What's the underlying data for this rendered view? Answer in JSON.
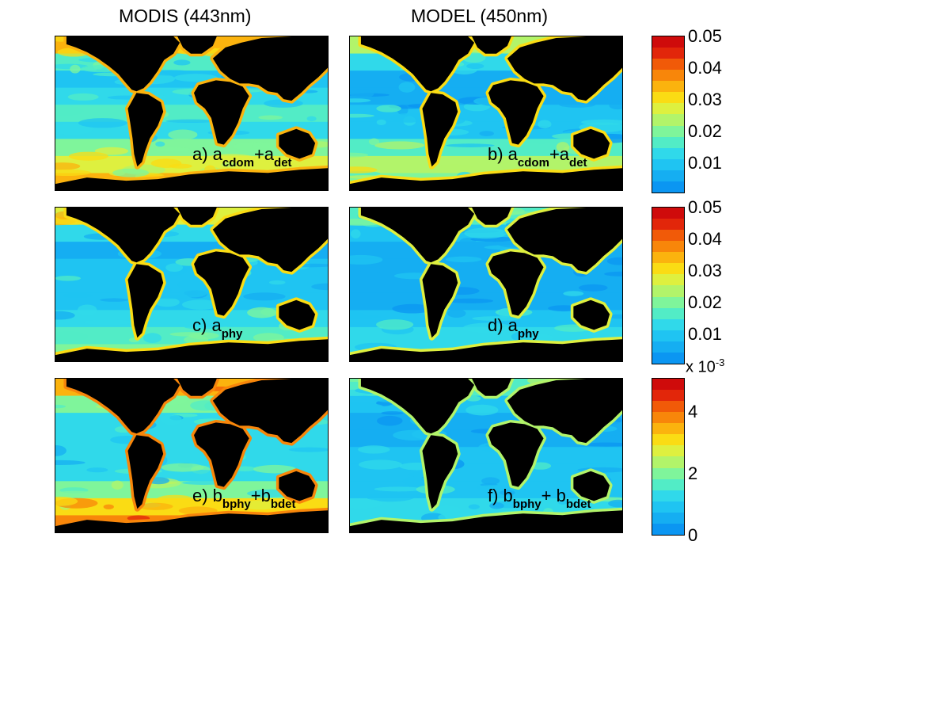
{
  "columns": {
    "left_title": "MODIS (443nm)",
    "right_title": "MODEL (450nm)"
  },
  "panels": [
    {
      "id": "a",
      "prefix": "a) a",
      "sub1": "cdom",
      "mid": "+a",
      "sub2": "det"
    },
    {
      "id": "b",
      "prefix": "b) a",
      "sub1": "cdom",
      "mid": "+a",
      "sub2": "det"
    },
    {
      "id": "c",
      "prefix": "c) a",
      "sub1": "phy",
      "mid": "",
      "sub2": ""
    },
    {
      "id": "d",
      "prefix": "d) a",
      "sub1": "phy",
      "mid": "",
      "sub2": ""
    },
    {
      "id": "e",
      "prefix": "e) b",
      "sub1": "bphy",
      "mid": "+b",
      "sub2": "bdet"
    },
    {
      "id": "f",
      "prefix": "f) b",
      "sub1": "bphy",
      "mid": "+ b",
      "sub2": "bdet"
    }
  ],
  "colorbars": [
    {
      "ticks": [
        "0.05",
        "0.04",
        "0.03",
        "0.02",
        "0.01"
      ],
      "exponent_label": ""
    },
    {
      "ticks": [
        "0.05",
        "0.04",
        "0.03",
        "0.02",
        "0.01"
      ],
      "exponent_label": ""
    },
    {
      "ticks": [
        "4",
        "2",
        "0"
      ],
      "exponent_label": "x 10",
      "exponent": "-3"
    }
  ],
  "colors": {
    "land": "#000000",
    "levels": [
      "#0b96f2",
      "#15aef2",
      "#1fc4f2",
      "#30d9ea",
      "#52ecc6",
      "#7ff59b",
      "#b2f46a",
      "#def03f",
      "#fadc14",
      "#fbb30e",
      "#f8860a",
      "#f15a08",
      "#e2260a",
      "#cf0b0b"
    ]
  }
}
